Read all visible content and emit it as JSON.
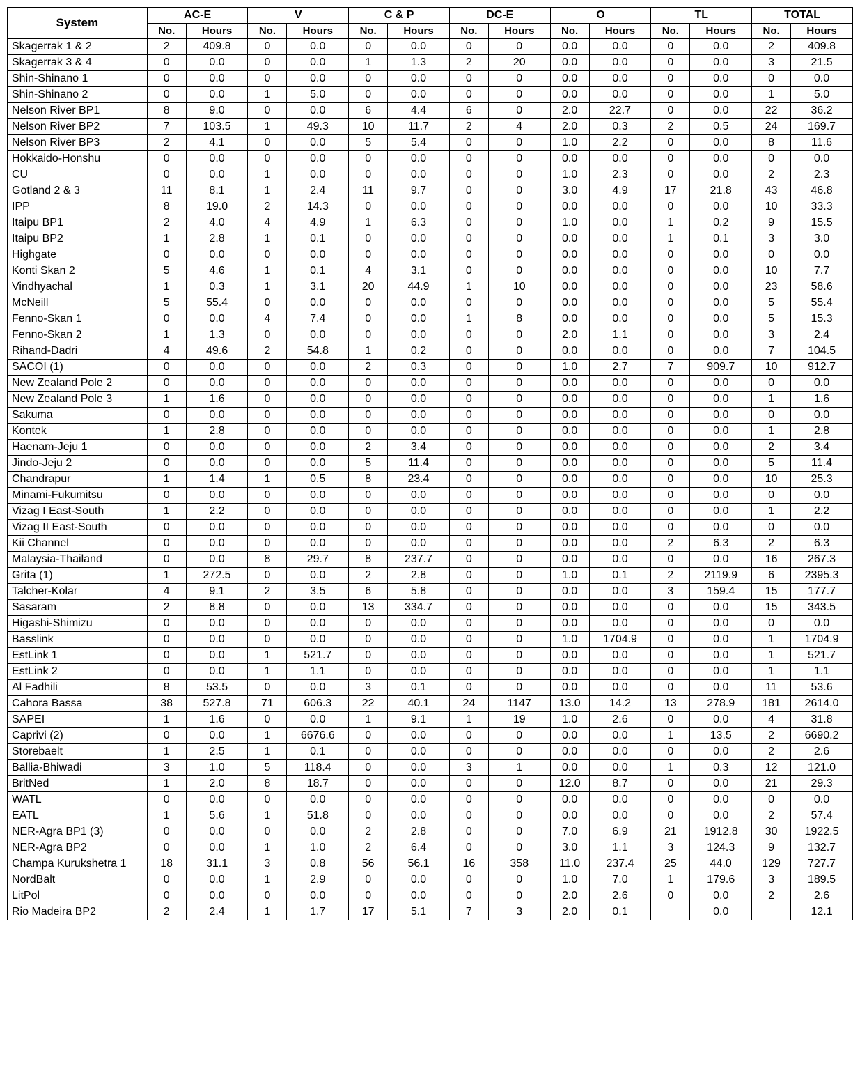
{
  "headers": {
    "system": "System",
    "groups": [
      "AC-E",
      "V",
      "C & P",
      "DC-E",
      "O",
      "TL",
      "TOTAL"
    ],
    "sub": {
      "no": "No.",
      "hours": "Hours"
    }
  },
  "rows": [
    {
      "system": "Skagerrak 1 & 2",
      "cells": [
        "2",
        "409.8",
        "0",
        "0.0",
        "0",
        "0.0",
        "0",
        "0",
        "0.0",
        "0.0",
        "0",
        "0.0",
        "2",
        "409.8"
      ]
    },
    {
      "system": "Skagerrak 3 & 4",
      "cells": [
        "0",
        "0.0",
        "0",
        "0.0",
        "1",
        "1.3",
        "2",
        "20",
        "0.0",
        "0.0",
        "0",
        "0.0",
        "3",
        "21.5"
      ]
    },
    {
      "system": "Shin-Shinano 1",
      "cells": [
        "0",
        "0.0",
        "0",
        "0.0",
        "0",
        "0.0",
        "0",
        "0",
        "0.0",
        "0.0",
        "0",
        "0.0",
        "0",
        "0.0"
      ]
    },
    {
      "system": "Shin-Shinano 2",
      "cells": [
        "0",
        "0.0",
        "1",
        "5.0",
        "0",
        "0.0",
        "0",
        "0",
        "0.0",
        "0.0",
        "0",
        "0.0",
        "1",
        "5.0"
      ]
    },
    {
      "system": "Nelson River BP1",
      "cells": [
        "8",
        "9.0",
        "0",
        "0.0",
        "6",
        "4.4",
        "6",
        "0",
        "2.0",
        "22.7",
        "0",
        "0.0",
        "22",
        "36.2"
      ]
    },
    {
      "system": "Nelson River BP2",
      "cells": [
        "7",
        "103.5",
        "1",
        "49.3",
        "10",
        "11.7",
        "2",
        "4",
        "2.0",
        "0.3",
        "2",
        "0.5",
        "24",
        "169.7"
      ]
    },
    {
      "system": "Nelson River BP3",
      "cells": [
        "2",
        "4.1",
        "0",
        "0.0",
        "5",
        "5.4",
        "0",
        "0",
        "1.0",
        "2.2",
        "0",
        "0.0",
        "8",
        "11.6"
      ]
    },
    {
      "system": "Hokkaido-Honshu",
      "cells": [
        "0",
        "0.0",
        "0",
        "0.0",
        "0",
        "0.0",
        "0",
        "0",
        "0.0",
        "0.0",
        "0",
        "0.0",
        "0",
        "0.0"
      ]
    },
    {
      "system": "CU",
      "cells": [
        "0",
        "0.0",
        "1",
        "0.0",
        "0",
        "0.0",
        "0",
        "0",
        "1.0",
        "2.3",
        "0",
        "0.0",
        "2",
        "2.3"
      ]
    },
    {
      "system": "Gotland 2 & 3",
      "cells": [
        "11",
        "8.1",
        "1",
        "2.4",
        "11",
        "9.7",
        "0",
        "0",
        "3.0",
        "4.9",
        "17",
        "21.8",
        "43",
        "46.8"
      ]
    },
    {
      "system": "IPP",
      "cells": [
        "8",
        "19.0",
        "2",
        "14.3",
        "0",
        "0.0",
        "0",
        "0",
        "0.0",
        "0.0",
        "0",
        "0.0",
        "10",
        "33.3"
      ]
    },
    {
      "system": "Itaipu BP1",
      "cells": [
        "2",
        "4.0",
        "4",
        "4.9",
        "1",
        "6.3",
        "0",
        "0",
        "1.0",
        "0.0",
        "1",
        "0.2",
        "9",
        "15.5"
      ]
    },
    {
      "system": "Itaipu BP2",
      "cells": [
        "1",
        "2.8",
        "1",
        "0.1",
        "0",
        "0.0",
        "0",
        "0",
        "0.0",
        "0.0",
        "1",
        "0.1",
        "3",
        "3.0"
      ]
    },
    {
      "system": "Highgate",
      "cells": [
        "0",
        "0.0",
        "0",
        "0.0",
        "0",
        "0.0",
        "0",
        "0",
        "0.0",
        "0.0",
        "0",
        "0.0",
        "0",
        "0.0"
      ]
    },
    {
      "system": "Konti Skan 2",
      "cells": [
        "5",
        "4.6",
        "1",
        "0.1",
        "4",
        "3.1",
        "0",
        "0",
        "0.0",
        "0.0",
        "0",
        "0.0",
        "10",
        "7.7"
      ]
    },
    {
      "system": "Vindhyachal",
      "cells": [
        "1",
        "0.3",
        "1",
        "3.1",
        "20",
        "44.9",
        "1",
        "10",
        "0.0",
        "0.0",
        "0",
        "0.0",
        "23",
        "58.6"
      ]
    },
    {
      "system": "McNeill",
      "cells": [
        "5",
        "55.4",
        "0",
        "0.0",
        "0",
        "0.0",
        "0",
        "0",
        "0.0",
        "0.0",
        "0",
        "0.0",
        "5",
        "55.4"
      ]
    },
    {
      "system": "Fenno-Skan 1",
      "cells": [
        "0",
        "0.0",
        "4",
        "7.4",
        "0",
        "0.0",
        "1",
        "8",
        "0.0",
        "0.0",
        "0",
        "0.0",
        "5",
        "15.3"
      ]
    },
    {
      "system": "Fenno-Skan 2",
      "cells": [
        "1",
        "1.3",
        "0",
        "0.0",
        "0",
        "0.0",
        "0",
        "0",
        "2.0",
        "1.1",
        "0",
        "0.0",
        "3",
        "2.4"
      ]
    },
    {
      "system": "Rihand-Dadri",
      "cells": [
        "4",
        "49.6",
        "2",
        "54.8",
        "1",
        "0.2",
        "0",
        "0",
        "0.0",
        "0.0",
        "0",
        "0.0",
        "7",
        "104.5"
      ]
    },
    {
      "system": "SACOI (1)",
      "cells": [
        "0",
        "0.0",
        "0",
        "0.0",
        "2",
        "0.3",
        "0",
        "0",
        "1.0",
        "2.7",
        "7",
        "909.7",
        "10",
        "912.7"
      ]
    },
    {
      "system": "New Zealand Pole 2",
      "cells": [
        "0",
        "0.0",
        "0",
        "0.0",
        "0",
        "0.0",
        "0",
        "0",
        "0.0",
        "0.0",
        "0",
        "0.0",
        "0",
        "0.0"
      ]
    },
    {
      "system": "New Zealand Pole 3",
      "cells": [
        "1",
        "1.6",
        "0",
        "0.0",
        "0",
        "0.0",
        "0",
        "0",
        "0.0",
        "0.0",
        "0",
        "0.0",
        "1",
        "1.6"
      ]
    },
    {
      "system": "Sakuma",
      "cells": [
        "0",
        "0.0",
        "0",
        "0.0",
        "0",
        "0.0",
        "0",
        "0",
        "0.0",
        "0.0",
        "0",
        "0.0",
        "0",
        "0.0"
      ]
    },
    {
      "system": "Kontek",
      "cells": [
        "1",
        "2.8",
        "0",
        "0.0",
        "0",
        "0.0",
        "0",
        "0",
        "0.0",
        "0.0",
        "0",
        "0.0",
        "1",
        "2.8"
      ]
    },
    {
      "system": "Haenam-Jeju 1",
      "cells": [
        "0",
        "0.0",
        "0",
        "0.0",
        "2",
        "3.4",
        "0",
        "0",
        "0.0",
        "0.0",
        "0",
        "0.0",
        "2",
        "3.4"
      ]
    },
    {
      "system": "Jindo-Jeju 2",
      "cells": [
        "0",
        "0.0",
        "0",
        "0.0",
        "5",
        "11.4",
        "0",
        "0",
        "0.0",
        "0.0",
        "0",
        "0.0",
        "5",
        "11.4"
      ]
    },
    {
      "system": "Chandrapur",
      "cells": [
        "1",
        "1.4",
        "1",
        "0.5",
        "8",
        "23.4",
        "0",
        "0",
        "0.0",
        "0.0",
        "0",
        "0.0",
        "10",
        "25.3"
      ]
    },
    {
      "system": "Minami-Fukumitsu",
      "cells": [
        "0",
        "0.0",
        "0",
        "0.0",
        "0",
        "0.0",
        "0",
        "0",
        "0.0",
        "0.0",
        "0",
        "0.0",
        "0",
        "0.0"
      ]
    },
    {
      "system": "Vizag I East-South",
      "cells": [
        "1",
        "2.2",
        "0",
        "0.0",
        "0",
        "0.0",
        "0",
        "0",
        "0.0",
        "0.0",
        "0",
        "0.0",
        "1",
        "2.2"
      ]
    },
    {
      "system": "Vizag II East-South",
      "cells": [
        "0",
        "0.0",
        "0",
        "0.0",
        "0",
        "0.0",
        "0",
        "0",
        "0.0",
        "0.0",
        "0",
        "0.0",
        "0",
        "0.0"
      ]
    },
    {
      "system": "Kii Channel",
      "cells": [
        "0",
        "0.0",
        "0",
        "0.0",
        "0",
        "0.0",
        "0",
        "0",
        "0.0",
        "0.0",
        "2",
        "6.3",
        "2",
        "6.3"
      ]
    },
    {
      "system": "Malaysia-Thailand",
      "cells": [
        "0",
        "0.0",
        "8",
        "29.7",
        "8",
        "237.7",
        "0",
        "0",
        "0.0",
        "0.0",
        "0",
        "0.0",
        "16",
        "267.3"
      ]
    },
    {
      "system": "Grita (1)",
      "cells": [
        "1",
        "272.5",
        "0",
        "0.0",
        "2",
        "2.8",
        "0",
        "0",
        "1.0",
        "0.1",
        "2",
        "2119.9",
        "6",
        "2395.3"
      ]
    },
    {
      "system": "Talcher-Kolar",
      "cells": [
        "4",
        "9.1",
        "2",
        "3.5",
        "6",
        "5.8",
        "0",
        "0",
        "0.0",
        "0.0",
        "3",
        "159.4",
        "15",
        "177.7"
      ]
    },
    {
      "system": "Sasaram",
      "cells": [
        "2",
        "8.8",
        "0",
        "0.0",
        "13",
        "334.7",
        "0",
        "0",
        "0.0",
        "0.0",
        "0",
        "0.0",
        "15",
        "343.5"
      ]
    },
    {
      "system": "Higashi-Shimizu",
      "cells": [
        "0",
        "0.0",
        "0",
        "0.0",
        "0",
        "0.0",
        "0",
        "0",
        "0.0",
        "0.0",
        "0",
        "0.0",
        "0",
        "0.0"
      ]
    },
    {
      "system": "Basslink",
      "cells": [
        "0",
        "0.0",
        "0",
        "0.0",
        "0",
        "0.0",
        "0",
        "0",
        "1.0",
        "1704.9",
        "0",
        "0.0",
        "1",
        "1704.9"
      ]
    },
    {
      "system": "EstLink 1",
      "cells": [
        "0",
        "0.0",
        "1",
        "521.7",
        "0",
        "0.0",
        "0",
        "0",
        "0.0",
        "0.0",
        "0",
        "0.0",
        "1",
        "521.7"
      ]
    },
    {
      "system": "EstLink 2",
      "cells": [
        "0",
        "0.0",
        "1",
        "1.1",
        "0",
        "0.0",
        "0",
        "0",
        "0.0",
        "0.0",
        "0",
        "0.0",
        "1",
        "1.1"
      ]
    },
    {
      "system": "Al Fadhili",
      "cells": [
        "8",
        "53.5",
        "0",
        "0.0",
        "3",
        "0.1",
        "0",
        "0",
        "0.0",
        "0.0",
        "0",
        "0.0",
        "11",
        "53.6"
      ]
    },
    {
      "system": "Cahora Bassa",
      "cells": [
        "38",
        "527.8",
        "71",
        "606.3",
        "22",
        "40.1",
        "24",
        "1147",
        "13.0",
        "14.2",
        "13",
        "278.9",
        "181",
        "2614.0"
      ]
    },
    {
      "system": "SAPEI",
      "cells": [
        "1",
        "1.6",
        "0",
        "0.0",
        "1",
        "9.1",
        "1",
        "19",
        "1.0",
        "2.6",
        "0",
        "0.0",
        "4",
        "31.8"
      ]
    },
    {
      "system": "Caprivi (2)",
      "cells": [
        "0",
        "0.0",
        "1",
        "6676.6",
        "0",
        "0.0",
        "0",
        "0",
        "0.0",
        "0.0",
        "1",
        "13.5",
        "2",
        "6690.2"
      ]
    },
    {
      "system": "Storebaelt",
      "cells": [
        "1",
        "2.5",
        "1",
        "0.1",
        "0",
        "0.0",
        "0",
        "0",
        "0.0",
        "0.0",
        "0",
        "0.0",
        "2",
        "2.6"
      ]
    },
    {
      "system": "Ballia-Bhiwadi",
      "cells": [
        "3",
        "1.0",
        "5",
        "118.4",
        "0",
        "0.0",
        "3",
        "1",
        "0.0",
        "0.0",
        "1",
        "0.3",
        "12",
        "121.0"
      ]
    },
    {
      "system": "BritNed",
      "cells": [
        "1",
        "2.0",
        "8",
        "18.7",
        "0",
        "0.0",
        "0",
        "0",
        "12.0",
        "8.7",
        "0",
        "0.0",
        "21",
        "29.3"
      ]
    },
    {
      "system": "WATL",
      "cells": [
        "0",
        "0.0",
        "0",
        "0.0",
        "0",
        "0.0",
        "0",
        "0",
        "0.0",
        "0.0",
        "0",
        "0.0",
        "0",
        "0.0"
      ]
    },
    {
      "system": "EATL",
      "cells": [
        "1",
        "5.6",
        "1",
        "51.8",
        "0",
        "0.0",
        "0",
        "0",
        "0.0",
        "0.0",
        "0",
        "0.0",
        "2",
        "57.4"
      ]
    },
    {
      "system": "NER-Agra BP1 (3)",
      "cells": [
        "0",
        "0.0",
        "0",
        "0.0",
        "2",
        "2.8",
        "0",
        "0",
        "7.0",
        "6.9",
        "21",
        "1912.8",
        "30",
        "1922.5"
      ]
    },
    {
      "system": "NER-Agra BP2",
      "cells": [
        "0",
        "0.0",
        "1",
        "1.0",
        "2",
        "6.4",
        "0",
        "0",
        "3.0",
        "1.1",
        "3",
        "124.3",
        "9",
        "132.7"
      ]
    },
    {
      "system": "Champa Kurukshetra 1",
      "cells": [
        "18",
        "31.1",
        "3",
        "0.8",
        "56",
        "56.1",
        "16",
        "358",
        "11.0",
        "237.4",
        "25",
        "44.0",
        "129",
        "727.7"
      ]
    },
    {
      "system": "NordBalt",
      "cells": [
        "0",
        "0.0",
        "1",
        "2.9",
        "0",
        "0.0",
        "0",
        "0",
        "1.0",
        "7.0",
        "1",
        "179.6",
        "3",
        "189.5"
      ]
    },
    {
      "system": "LitPol",
      "cells": [
        "0",
        "0.0",
        "0",
        "0.0",
        "0",
        "0.0",
        "0",
        "0",
        "2.0",
        "2.6",
        "0",
        "0.0",
        "2",
        "2.6"
      ]
    },
    {
      "system": "Rio Madeira BP2",
      "cells": [
        "2",
        "2.4",
        "1",
        "1.7",
        "17",
        "5.1",
        "7",
        "3",
        "2.0",
        "0.1",
        "",
        "0.0",
        "",
        "12.1"
      ]
    }
  ]
}
